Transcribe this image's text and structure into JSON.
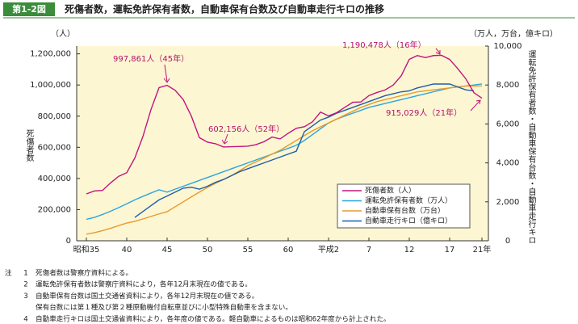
{
  "figure_label": "第1-2図",
  "chart_data": {
    "type": "line",
    "title": "死傷者数，運転免許保有者数，自動車保有台数及び自動車走行キロの推移",
    "y_unit": "（人）",
    "y2_unit": "（万人，万台，億キロ）",
    "y_label": "死傷者数",
    "y2_label": "運転免許保有者数・自動車保有台数・自動車走行キロ",
    "categories": [
      "昭和35",
      null,
      null,
      null,
      null,
      "40",
      null,
      null,
      null,
      null,
      "45",
      null,
      null,
      null,
      null,
      "50",
      null,
      null,
      null,
      null,
      "55",
      null,
      null,
      null,
      null,
      "60",
      null,
      null,
      null,
      null,
      "平成2",
      null,
      null,
      null,
      null,
      "7",
      null,
      null,
      null,
      null,
      "12",
      null,
      null,
      null,
      null,
      "17",
      null,
      null,
      null,
      "21年"
    ],
    "ylim": [
      0,
      1250000
    ],
    "yticks": [
      0,
      {
        "value": 200000,
        "label": "200,000"
      },
      {
        "value": 400000,
        "label": "400,000"
      },
      {
        "value": 600000,
        "label": "600,000"
      },
      {
        "value": 800000,
        "label": "800,000"
      },
      {
        "value": 1000000,
        "label": "1,000,000"
      },
      {
        "value": 1200000,
        "label": "1,200,000"
      }
    ],
    "y2lim": [
      0,
      10000
    ],
    "y2ticks": [
      0,
      {
        "value": 2000,
        "label": "2,000"
      },
      {
        "value": 4000,
        "label": "4,000"
      },
      {
        "value": 6000,
        "label": "6,000"
      },
      {
        "value": 8000,
        "label": "8,000"
      },
      {
        "value": 10000,
        "label": "10,000"
      }
    ],
    "legend": "lower right",
    "background": "#fdf6d2",
    "series": [
      {
        "name": "死傷者数（人）",
        "color": "#c0157f",
        "axis": "y",
        "values": [
          301000,
          320000,
          323000,
          372000,
          414000,
          437000,
          531000,
          669000,
          842000,
          983000,
          997861,
          966000,
          906000,
          801000,
          662000,
          633000,
          623000,
          602156,
          604000,
          605000,
          607000,
          617000,
          636000,
          666000,
          654000,
          690000,
          722000,
          732000,
          763000,
          826000,
          802000,
          822000,
          856000,
          889000,
          891000,
          932000,
          952000,
          968000,
          999000,
          1059000,
          1165000,
          1189000,
          1176000,
          1189000,
          1190478,
          1164000,
          1105000,
          1040000,
          951000,
          915029
        ]
      },
      {
        "name": "運転免許保有者数（万人）",
        "color": "#2ba6de",
        "axis": "y2",
        "values": [
          1100,
          1200,
          1350,
          1520,
          1700,
          1900,
          2100,
          2280,
          2450,
          2620,
          2500,
          2650,
          2800,
          2950,
          3100,
          3250,
          3400,
          3550,
          3700,
          3850,
          4000,
          4150,
          4300,
          4450,
          4600,
          4750,
          4900,
          5150,
          5450,
          5750,
          6050,
          6250,
          6400,
          6550,
          6700,
          6850,
          6950,
          7050,
          7150,
          7250,
          7350,
          7450,
          7550,
          7650,
          7750,
          7850,
          7900,
          7950,
          8000,
          8050
        ]
      },
      {
        "name": "自動車保有台数（万台）",
        "color": "#e89a2c",
        "axis": "y2",
        "values": [
          340,
          420,
          520,
          640,
          780,
          910,
          1000,
          1120,
          1250,
          1380,
          1490,
          1750,
          2000,
          2250,
          2500,
          2740,
          2950,
          3150,
          3350,
          3600,
          3860,
          4050,
          4250,
          4450,
          4650,
          4900,
          5150,
          5400,
          5650,
          5850,
          6050,
          6250,
          6450,
          6650,
          6850,
          7000,
          7150,
          7250,
          7350,
          7450,
          7550,
          7650,
          7700,
          7750,
          7800,
          7850,
          7900,
          7950,
          7950,
          7950
        ]
      },
      {
        "name": "自動車走行キロ（億キロ）",
        "color": "#1f5ea8",
        "axis": "y2",
        "values": [
          null,
          null,
          null,
          null,
          null,
          null,
          1200,
          1500,
          1800,
          2100,
          2300,
          2500,
          2700,
          2750,
          2650,
          2800,
          3000,
          3150,
          3350,
          3550,
          3700,
          3850,
          4000,
          4150,
          4300,
          4450,
          4600,
          5600,
          5900,
          6200,
          6350,
          6550,
          6700,
          6850,
          7000,
          7150,
          7300,
          7450,
          7550,
          7650,
          7700,
          7850,
          7950,
          8050,
          8050,
          8050,
          7900,
          7750,
          7700,
          null
        ]
      }
    ],
    "annotations": [
      "997,861人（45年）",
      "602,156人（52年）",
      "1,190,478人（16年）",
      "915,029人（21年）"
    ]
  },
  "notes": {
    "label": "注",
    "items": [
      {
        "num": "1",
        "lines": [
          "死傷者数は警察庁資料による。"
        ]
      },
      {
        "num": "2",
        "lines": [
          "運転免許保有者数は警察庁資料により，各年12月末現在の値である。"
        ]
      },
      {
        "num": "3",
        "lines": [
          "自動車保有台数は国土交通省資料により，各年12月末現在の値である。",
          "保有台数には第１種及び第２種原動機付自転車並びに小型特殊自動車を含まない。"
        ]
      },
      {
        "num": "4",
        "lines": [
          "自動車走行キロは国土交通省資料により，各年度の値である。軽自動車によるものは昭和62年度から計上された。"
        ]
      }
    ]
  }
}
